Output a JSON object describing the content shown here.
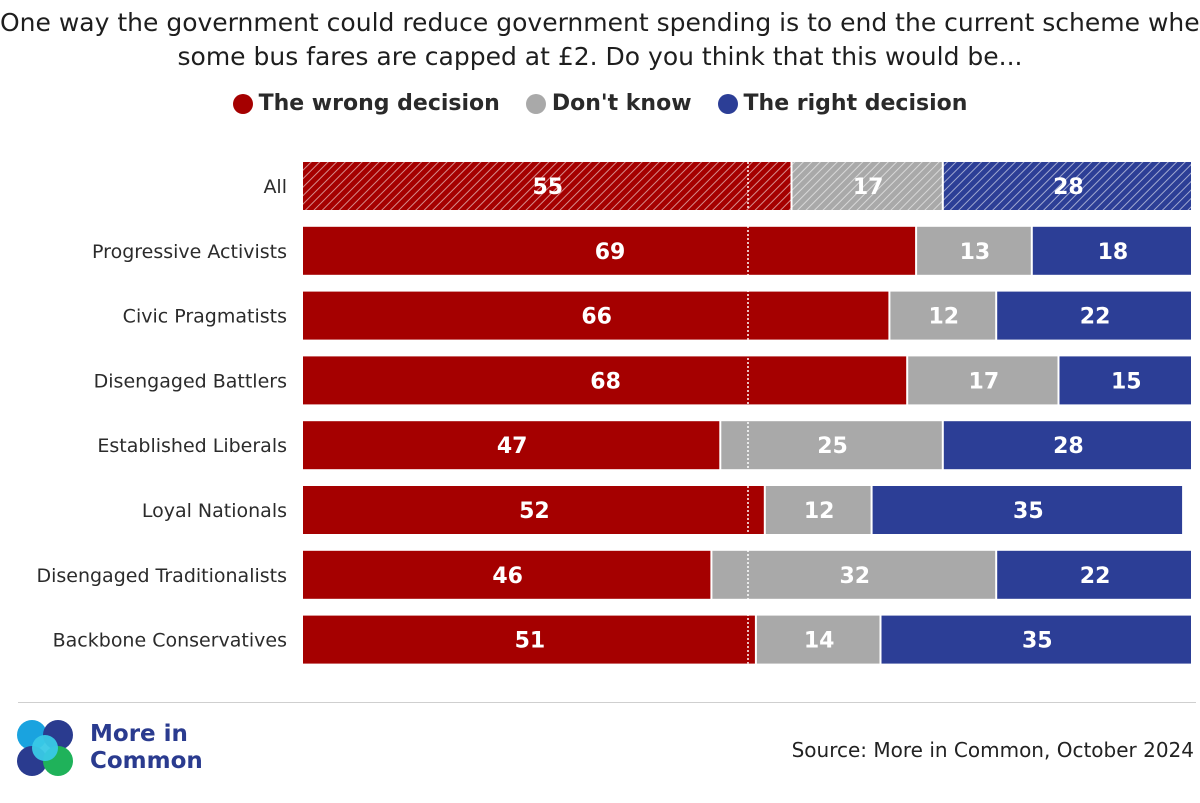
{
  "title_lines": [
    "One way the government could reduce government spending is to end the current scheme where",
    "some bus fares are capped at £2. Do you think that this would be..."
  ],
  "legend": [
    {
      "label": "The wrong decision",
      "color": "#a50000"
    },
    {
      "label": "Don't know",
      "color": "#a9a9a9"
    },
    {
      "label": "The right decision",
      "color": "#2c3e96"
    }
  ],
  "chart_data": {
    "type": "bar",
    "orientation": "horizontal",
    "stacked": true,
    "scale": "percent",
    "xlim": [
      0,
      100
    ],
    "categories": [
      "All",
      "Progressive Activists",
      "Civic Pragmatists",
      "Disengaged Battlers",
      "Established Liberals",
      "Loyal Nationals",
      "Disengaged Traditionalists",
      "Backbone Conservatives"
    ],
    "series": [
      {
        "name": "The wrong decision",
        "color": "#a50000",
        "values": [
          55,
          69,
          66,
          68,
          47,
          52,
          46,
          51
        ]
      },
      {
        "name": "Don't know",
        "color": "#a9a9a9",
        "values": [
          17,
          13,
          12,
          17,
          25,
          12,
          32,
          14
        ]
      },
      {
        "name": "The right decision",
        "color": "#2c3e96",
        "values": [
          28,
          18,
          22,
          15,
          28,
          35,
          22,
          35
        ]
      }
    ],
    "reference_line": 50,
    "hatched_categories": [
      "All"
    ],
    "legend_position": "top"
  },
  "footer": {
    "logo_line1": "More in",
    "logo_line2": "Common",
    "source": "Source: More in Common, October 2024"
  }
}
